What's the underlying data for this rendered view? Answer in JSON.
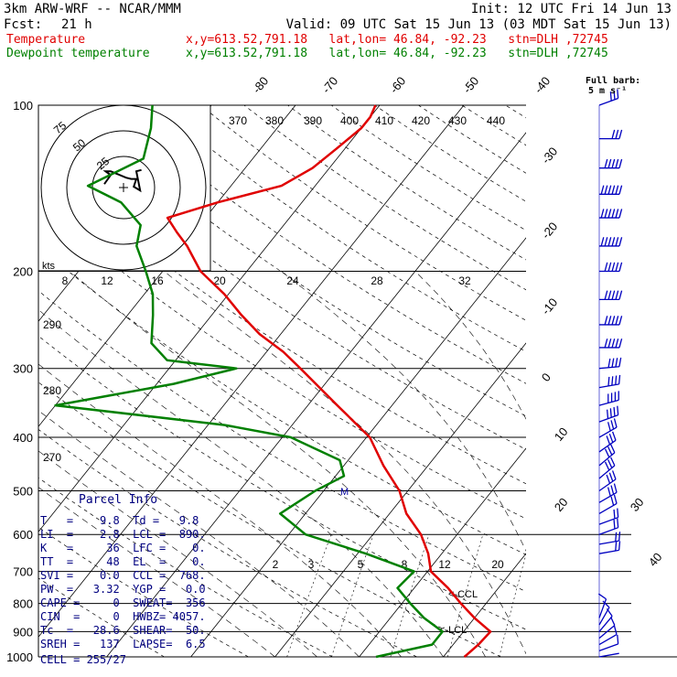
{
  "header": {
    "model": "3km ARW-WRF -- NCAR/MMM",
    "init": "Init: 12 UTC Fri 14 Jun 13",
    "fcst_label": "Fcst:",
    "fcst_value": "21 h",
    "valid": "Valid: 09 UTC Sat 15 Jun 13 (03 MDT Sat 15 Jun 13)",
    "temp_label": "Temperature",
    "temp_info": "x,y=613.52,791.18   lat,lon= 46.84, -92.23   stn=DLH ,72745",
    "dew_label": "Dewpoint temperature",
    "dew_info": "x,y=613.52,791.18   lat,lon= 46.84, -92.23   stn=DLH ,72745"
  },
  "barb_legend": {
    "line1": "Full barb:",
    "line2": "5 m s⁻¹"
  },
  "parcel": {
    "title": "Parcel Info",
    "rows": [
      "T   =    9.8  Td =   9.8",
      "LI  =    2.8  LCL =  890.",
      "K   =     36  LFC =    0.",
      "TT  =     48  EL  =    0.",
      "SVI =    0.0  CCL =  768.",
      "PW  =   3.32  YGP =   0.0",
      "CAPE =     0  SWEAT=  356",
      "CIN  =     0  HWBZ= 4057.",
      "Tc  =   28.6  SHEAR=  50.",
      "SREH =   137  LAPSE=  6.5",
      "CELL = 255/27"
    ]
  },
  "chart_data": {
    "type": "skew-T log-P sounding",
    "pressure_levels": [
      "100",
      "200",
      "300",
      "400",
      "500",
      "600",
      "700",
      "800",
      "900",
      "1000"
    ],
    "isotherm_labels_top": [
      "-80",
      "-70",
      "-60",
      "-50",
      "-40"
    ],
    "isotherm_labels_right": [
      "-30",
      "-20",
      "-10",
      "0",
      "10",
      "20",
      "30",
      "40"
    ],
    "theta_labels_top": [
      "370",
      "380",
      "390",
      "400",
      "410",
      "420",
      "430",
      "440"
    ],
    "theta_labels_left": [
      "290",
      "280",
      "270"
    ],
    "hodograph_ring_labels": [
      "75",
      "50",
      "25"
    ],
    "hodograph_axis_label": "kts",
    "mixing_ratio_labels": [
      "8",
      "12",
      "16",
      "20",
      "24",
      "28",
      "32"
    ],
    "mixing_ratio_small_labels": [
      "2",
      "3",
      "5",
      "8",
      "12",
      "20"
    ],
    "markers": {
      "ccl": "<-CCL",
      "lcl": "<-LCL",
      "m": "M"
    },
    "series": [
      {
        "name": "Temperature",
        "color": "#e00000",
        "points": [
          [
            1000,
            12.5
          ],
          [
            950,
            13
          ],
          [
            900,
            13.2
          ],
          [
            850,
            10
          ],
          [
            800,
            7
          ],
          [
            750,
            4
          ],
          [
            700,
            0.4
          ],
          [
            650,
            -1.6
          ],
          [
            600,
            -4.3
          ],
          [
            550,
            -8
          ],
          [
            500,
            -11
          ],
          [
            450,
            -15.3
          ],
          [
            400,
            -19.6
          ],
          [
            350,
            -26.5
          ],
          [
            300,
            -34.4
          ],
          [
            280,
            -38
          ],
          [
            260,
            -42.5
          ],
          [
            240,
            -46.5
          ],
          [
            220,
            -50.5
          ],
          [
            200,
            -55.5
          ],
          [
            180,
            -59.5
          ],
          [
            170,
            -62
          ],
          [
            160,
            -64.5
          ],
          [
            150,
            -60
          ],
          [
            140,
            -54
          ],
          [
            130,
            -52
          ],
          [
            120,
            -51
          ],
          [
            110,
            -50
          ],
          [
            105,
            -50
          ],
          [
            100,
            -50.5
          ]
        ]
      },
      {
        "name": "Dewpoint temperature",
        "color": "#008000",
        "points": [
          [
            1000,
            2
          ],
          [
            950,
            7.5
          ],
          [
            900,
            7.5
          ],
          [
            850,
            4
          ],
          [
            800,
            1
          ],
          [
            750,
            -2
          ],
          [
            700,
            -1.6
          ],
          [
            650,
            -9
          ],
          [
            600,
            -18
          ],
          [
            550,
            -23
          ],
          [
            500,
            -21
          ],
          [
            470,
            -19
          ],
          [
            440,
            -21
          ],
          [
            400,
            -29
          ],
          [
            380,
            -38
          ],
          [
            350,
            -60
          ],
          [
            320,
            -48
          ],
          [
            300,
            -42
          ],
          [
            290,
            -51
          ],
          [
            270,
            -54.5
          ],
          [
            240,
            -57
          ],
          [
            220,
            -59
          ],
          [
            200,
            -62
          ],
          [
            180,
            -65.5
          ],
          [
            165,
            -67
          ],
          [
            150,
            -71.5
          ],
          [
            140,
            -77
          ],
          [
            125,
            -73
          ],
          [
            110,
            -75
          ],
          [
            100,
            -77
          ]
        ]
      }
    ],
    "hodograph": [
      [
        -15,
        17
      ],
      [
        -10,
        24
      ],
      [
        -14,
        27
      ],
      [
        -10,
        27
      ],
      [
        2,
        22
      ],
      [
        6,
        21
      ],
      [
        10,
        21
      ],
      [
        8,
        15
      ],
      [
        13,
        12
      ],
      [
        10,
        27
      ],
      [
        14,
        28
      ]
    ],
    "winds": [
      {
        "p": 100,
        "spd": 7,
        "dir": 70
      },
      {
        "p": 115,
        "spd": 7,
        "dir": 90
      },
      {
        "p": 130,
        "spd": 10,
        "dir": 90
      },
      {
        "p": 145,
        "spd": 12,
        "dir": 90
      },
      {
        "p": 160,
        "spd": 12,
        "dir": 90
      },
      {
        "p": 180,
        "spd": 12,
        "dir": 90
      },
      {
        "p": 200,
        "spd": 10,
        "dir": 90
      },
      {
        "p": 225,
        "spd": 10,
        "dir": 90
      },
      {
        "p": 250,
        "spd": 10,
        "dir": 90
      },
      {
        "p": 275,
        "spd": 10,
        "dir": 90
      },
      {
        "p": 300,
        "spd": 9,
        "dir": 85
      },
      {
        "p": 325,
        "spd": 9,
        "dir": 80
      },
      {
        "p": 350,
        "spd": 8,
        "dir": 75
      },
      {
        "p": 375,
        "spd": 8,
        "dir": 70
      },
      {
        "p": 400,
        "spd": 7,
        "dir": 60
      },
      {
        "p": 425,
        "spd": 7,
        "dir": 55
      },
      {
        "p": 450,
        "spd": 6,
        "dir": 50
      },
      {
        "p": 475,
        "spd": 6,
        "dir": 50
      },
      {
        "p": 500,
        "spd": 6,
        "dir": 55
      },
      {
        "p": 525,
        "spd": 6,
        "dir": 60
      },
      {
        "p": 550,
        "spd": 5,
        "dir": 60
      },
      {
        "p": 575,
        "spd": 5,
        "dir": 70
      },
      {
        "p": 600,
        "spd": 5,
        "dir": 70
      },
      {
        "p": 625,
        "spd": 5,
        "dir": 80
      },
      {
        "p": 650,
        "spd": 4,
        "dir": 80
      },
      {
        "p": 850,
        "spd": 3,
        "dir": 20
      },
      {
        "p": 875,
        "spd": 3,
        "dir": 30
      },
      {
        "p": 900,
        "spd": 3,
        "dir": 40
      },
      {
        "p": 925,
        "spd": 2,
        "dir": 50
      },
      {
        "p": 950,
        "spd": 2,
        "dir": 60
      },
      {
        "p": 975,
        "spd": 2,
        "dir": 70
      },
      {
        "p": 1000,
        "spd": 1,
        "dir": 80
      }
    ],
    "colors": {
      "temperature": "#e00000",
      "dewpoint": "#008000",
      "barbs": "#0000c0",
      "grid": "#000000"
    }
  }
}
